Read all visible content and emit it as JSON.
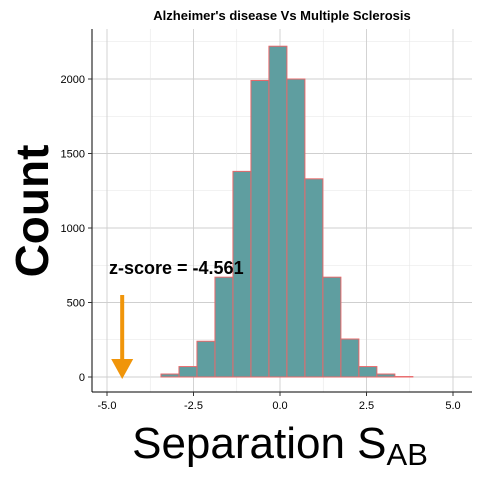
{
  "chart_data": {
    "type": "bar",
    "title": "Alzheimer's disease Vs Multiple Sclerosis",
    "ylabel": "Count",
    "xlabel": {
      "main": "Separation S",
      "subscript": "AB"
    },
    "xlim": [
      -5.0,
      5.0
    ],
    "ylim": [
      0,
      2200
    ],
    "x_ticks": [
      -5.0,
      -2.5,
      0.0,
      2.5,
      5.0
    ],
    "x_tick_labels": [
      "-5.0",
      "-2.5",
      "0.0",
      "2.5",
      "5.0"
    ],
    "y_ticks": [
      0,
      500,
      1000,
      1500,
      2000
    ],
    "y_tick_labels": [
      "0",
      "500",
      "1000",
      "1500",
      "2000"
    ],
    "bin_width": 0.52,
    "bins": [
      {
        "x": -5.0,
        "value": 0
      },
      {
        "x": -4.48,
        "value": 0
      },
      {
        "x": -3.96,
        "value": 0
      },
      {
        "x": -3.44,
        "value": 20
      },
      {
        "x": -2.92,
        "value": 70
      },
      {
        "x": -2.4,
        "value": 240
      },
      {
        "x": -1.88,
        "value": 670
      },
      {
        "x": -1.36,
        "value": 1380
      },
      {
        "x": -0.84,
        "value": 1990
      },
      {
        "x": -0.32,
        "value": 2220
      },
      {
        "x": 0.2,
        "value": 2000
      },
      {
        "x": 0.72,
        "value": 1330
      },
      {
        "x": 1.24,
        "value": 670
      },
      {
        "x": 1.76,
        "value": 255
      },
      {
        "x": 2.28,
        "value": 70
      },
      {
        "x": 2.8,
        "value": 20
      },
      {
        "x": 3.32,
        "value": 3
      },
      {
        "x": 3.84,
        "value": 0
      },
      {
        "x": 4.36,
        "value": 0
      }
    ],
    "annotation": {
      "text": "z-score = -4.561",
      "arrow_x": -4.561,
      "arrow_from_y": 550,
      "arrow_to_y": 0
    },
    "colors": {
      "bar_fill": "#5F9EA0",
      "bar_stroke": "#E8686A",
      "arrow": "#F0950A",
      "grid": "#D3D3D3",
      "axis": "#000000"
    },
    "grid": true
  }
}
